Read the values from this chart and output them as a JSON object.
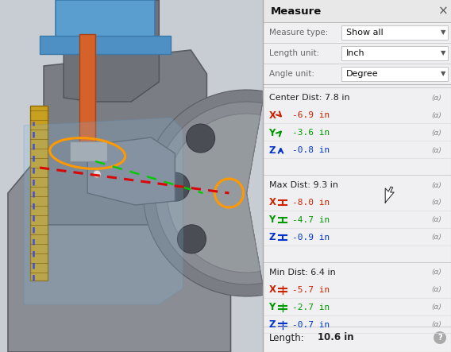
{
  "panel_bg": "#f0f0f2",
  "panel_title": "Measure",
  "panel_split": 0.582,
  "measure_type_label": "Measure type:",
  "measure_type_val": "Show all",
  "length_unit_label": "Length unit:",
  "length_unit_val": "Inch",
  "angle_unit_label": "Angle unit:",
  "angle_unit_val": "Degree",
  "sections": [
    {
      "header": "Center Dist: 7.8 in",
      "rows": [
        {
          "axis": "X",
          "arrow": "down-right",
          "color": "#cc2200",
          "value": "-6.9 in"
        },
        {
          "axis": "Y",
          "arrow": "up-right",
          "color": "#009900",
          "value": "-3.6 in"
        },
        {
          "axis": "Z",
          "arrow": "up",
          "color": "#0033cc",
          "value": "-0.8 in"
        }
      ]
    },
    {
      "header": "Max Dist: 9.3 in",
      "rows": [
        {
          "axis": "X",
          "arrow": "bar",
          "color": "#cc2200",
          "value": "-8.0 in"
        },
        {
          "axis": "Y",
          "arrow": "bar",
          "color": "#009900",
          "value": "-4.7 in"
        },
        {
          "axis": "Z",
          "arrow": "bar",
          "color": "#0033cc",
          "value": "-0.9 in"
        }
      ]
    },
    {
      "header": "Min Dist: 6.4 in",
      "rows": [
        {
          "axis": "X",
          "arrow": "equals",
          "color": "#cc2200",
          "value": "-5.7 in"
        },
        {
          "axis": "Y",
          "arrow": "equals",
          "color": "#009900",
          "value": "-2.7 in"
        },
        {
          "axis": "Z",
          "arrow": "equals",
          "color": "#0033cc",
          "value": "-0.7 in"
        }
      ]
    }
  ],
  "length_label": "Length:",
  "length_val": "10.6 in",
  "header_color": "#222222",
  "sep_color": "#cccccc",
  "label_color": "#666666",
  "icon_bg": "#e8e8e8",
  "cad_bg": "#c8cdd4"
}
